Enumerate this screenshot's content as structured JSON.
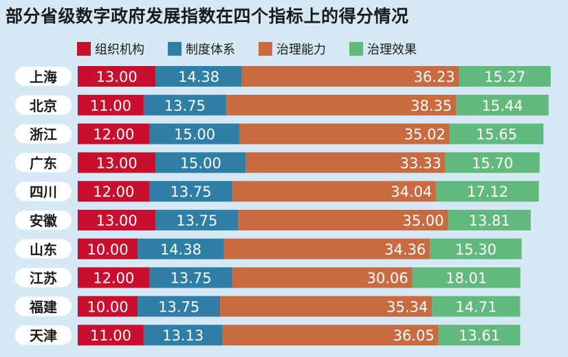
{
  "title": "部分省级数字政府发展指数在四个指标上的得分情况",
  "chart_data": {
    "type": "bar",
    "stacked": true,
    "orientation": "horizontal",
    "title": "部分省级数字政府发展指数在四个指标上的得分情况",
    "categories": [
      "上海",
      "北京",
      "浙江",
      "广东",
      "四川",
      "安徽",
      "山东",
      "江苏",
      "福建",
      "天津"
    ],
    "series": [
      {
        "name": "组织机构",
        "color": "#c8102e",
        "values": [
          13.0,
          11.0,
          12.0,
          13.0,
          12.0,
          13.0,
          10.0,
          12.0,
          10.0,
          11.0
        ],
        "labels": [
          "13.00",
          "11.00",
          "12.00",
          "13.00",
          "12.00",
          "13.00",
          "10.00",
          "12.00",
          "10.00",
          "11.00"
        ]
      },
      {
        "name": "制度体系",
        "color": "#2e7ea5",
        "values": [
          14.38,
          13.75,
          15.0,
          15.0,
          13.75,
          13.75,
          14.38,
          13.75,
          13.75,
          13.13
        ],
        "labels": [
          "14.38",
          "13.75",
          "15.00",
          "15.00",
          "13.75",
          "13.75",
          "14.38",
          "13.75",
          "13.75",
          "13.13"
        ]
      },
      {
        "name": "治理能力",
        "color": "#c86b40",
        "values": [
          36.23,
          38.35,
          35.02,
          33.33,
          34.04,
          35.0,
          34.36,
          30.06,
          35.34,
          36.05
        ],
        "labels": [
          "36.23",
          "38.35",
          "35.02",
          "33.33",
          "34.04",
          "35.00",
          "34.36",
          "30.06",
          "35.34",
          "36.05"
        ]
      },
      {
        "name": "治理效果",
        "color": "#62b97d",
        "values": [
          15.27,
          15.44,
          15.65,
          15.7,
          17.12,
          13.81,
          15.3,
          18.01,
          14.71,
          13.61
        ],
        "labels": [
          "15.27",
          "15.44",
          "15.65",
          "15.70",
          "17.12",
          "13.81",
          "15.30",
          "18.01",
          "14.71",
          "13.61"
        ]
      }
    ],
    "legend": "top",
    "grid": false
  }
}
